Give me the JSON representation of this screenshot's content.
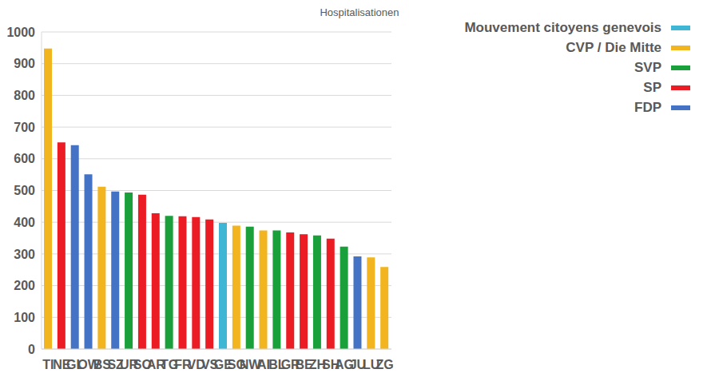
{
  "chart_data": {
    "type": "bar",
    "title": "Hospitalisationen",
    "categories": [
      "TI",
      "NE",
      "GL",
      "OW",
      "BS",
      "SZ",
      "UR",
      "SO",
      "AR",
      "TG",
      "FR",
      "VD",
      "VS",
      "GE",
      "SG",
      "NW",
      "AI",
      "BL",
      "GR",
      "BE",
      "ZH",
      "SH",
      "AG",
      "JU",
      "LU",
      "ZG"
    ],
    "series": [
      {
        "name": "Mouvement citoyens genevois",
        "color": "#3fb6d3",
        "values": [
          null,
          null,
          null,
          null,
          null,
          null,
          null,
          null,
          null,
          null,
          null,
          null,
          null,
          398,
          null,
          null,
          null,
          null,
          null,
          null,
          null,
          null,
          null,
          null,
          null,
          null
        ]
      },
      {
        "name": "CVP / Die Mitte",
        "color": "#f3b51f",
        "values": [
          948,
          null,
          null,
          null,
          512,
          null,
          null,
          null,
          null,
          null,
          null,
          null,
          null,
          null,
          389,
          null,
          374,
          null,
          null,
          null,
          null,
          null,
          null,
          null,
          289,
          259
        ]
      },
      {
        "name": "SVP",
        "color": "#19a03a",
        "values": [
          null,
          null,
          null,
          null,
          null,
          null,
          494,
          null,
          null,
          420,
          null,
          null,
          null,
          null,
          null,
          386,
          null,
          374,
          null,
          null,
          358,
          null,
          323,
          null,
          null,
          null
        ]
      },
      {
        "name": "SP",
        "color": "#ec1c24",
        "values": [
          null,
          652,
          null,
          null,
          null,
          null,
          null,
          487,
          428,
          null,
          419,
          416,
          409,
          null,
          null,
          null,
          null,
          null,
          368,
          362,
          null,
          348,
          null,
          null,
          null,
          null
        ]
      },
      {
        "name": "FDP",
        "color": "#4472c4",
        "values": [
          null,
          null,
          643,
          551,
          null,
          497,
          null,
          null,
          null,
          null,
          null,
          null,
          null,
          null,
          null,
          null,
          null,
          null,
          null,
          null,
          null,
          null,
          null,
          292,
          null,
          null
        ]
      }
    ],
    "ylim": [
      0,
      1000
    ],
    "yticks": [
      0,
      100,
      200,
      300,
      400,
      500,
      600,
      700,
      800,
      900,
      1000
    ],
    "grid": true,
    "stacked": true,
    "legend": "upper right"
  }
}
